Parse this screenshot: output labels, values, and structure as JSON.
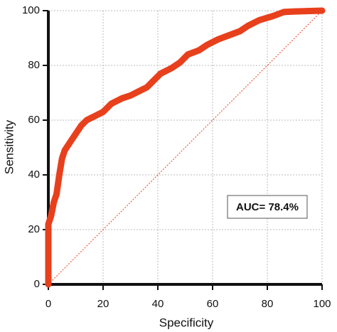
{
  "chart_data": {
    "type": "line",
    "xlabel": "Specificity",
    "ylabel": "Sensitivity",
    "annotation": "AUC= 78.4%",
    "xlim": [
      0,
      100
    ],
    "ylim": [
      0,
      100
    ],
    "xticks": [
      0,
      20,
      40,
      60,
      80,
      100
    ],
    "yticks": [
      0,
      20,
      40,
      60,
      80,
      100
    ],
    "grid": true,
    "series": [
      {
        "color": "#e8401c",
        "x": [
          0,
          0,
          0,
          1,
          2,
          3,
          4,
          5,
          6,
          8,
          10,
          12,
          14,
          17,
          20,
          23,
          27,
          30,
          33,
          36,
          38,
          41,
          45,
          48,
          51,
          55,
          58,
          62,
          66,
          70,
          73,
          77,
          82,
          86,
          90,
          100
        ],
        "values": [
          0,
          10,
          22,
          25,
          30,
          33,
          40,
          46,
          49,
          52,
          55,
          58,
          60,
          61.5,
          63,
          66,
          68,
          69,
          70.5,
          72,
          74,
          77,
          79,
          81,
          84,
          85.5,
          87.5,
          89.5,
          91,
          92.5,
          94.5,
          96.5,
          98,
          99.5,
          99.7,
          100
        ]
      }
    ],
    "diagonal": {
      "color": "#e8401c",
      "x": [
        0,
        100
      ],
      "values": [
        0,
        100
      ]
    }
  }
}
